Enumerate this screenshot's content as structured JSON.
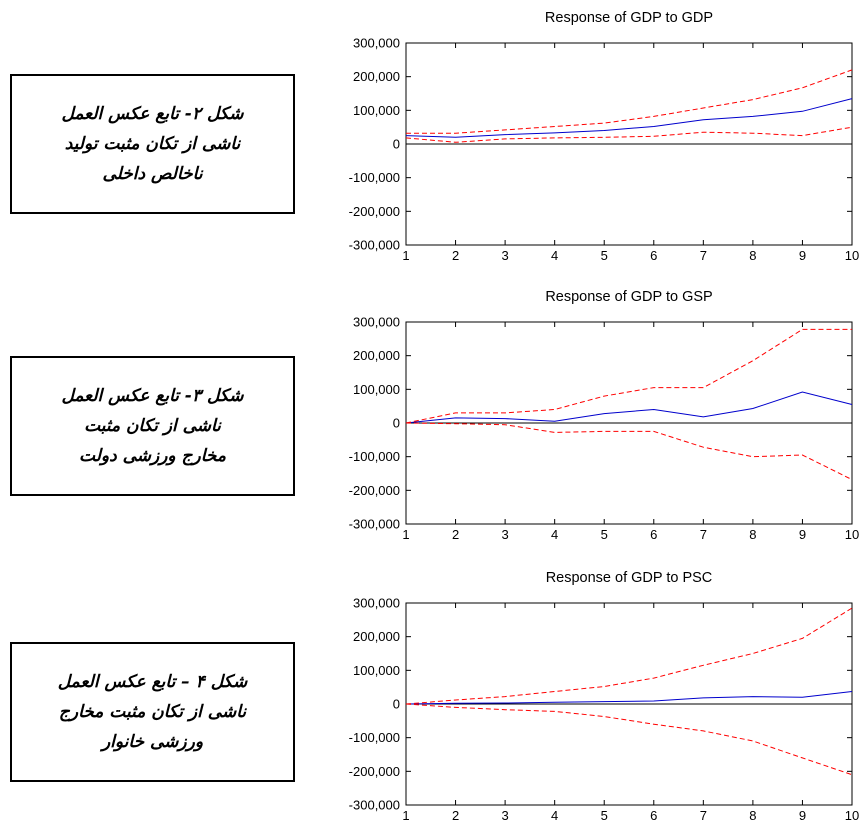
{
  "captions": [
    {
      "lines": [
        "شکل ۲- تابع عکس العمل",
        "ناشی از تکان مثبت تولید",
        "ناخالص داخلی"
      ]
    },
    {
      "lines": [
        "شکل ۳- تابع عکس العمل",
        "ناشی از تکان مثبت",
        "مخارج ورزشی دولت"
      ]
    },
    {
      "lines": [
        "شکل ۴ – تابع عکس العمل",
        "ناشی از تکان مثبت مخارج",
        "ورزشی خانوار"
      ]
    }
  ],
  "colors": {
    "response": "#0000cc",
    "bands": "#ff0000",
    "axis": "#000000",
    "zero_line": "#000000"
  },
  "chart_data": [
    {
      "type": "line",
      "title": "Response of GDP to GDP",
      "x": [
        1,
        2,
        3,
        4,
        5,
        6,
        7,
        8,
        9,
        10
      ],
      "ylim": [
        -300000,
        300000
      ],
      "yticks": [
        -300000,
        -200000,
        -100000,
        0,
        100000,
        200000,
        300000
      ],
      "ytick_labels": [
        "-300,000",
        "-200,000",
        "-100,000",
        "0",
        "100,000",
        "200,000",
        "300,000"
      ],
      "xtick_labels": [
        "1",
        "2",
        "3",
        "4",
        "5",
        "6",
        "7",
        "8",
        "9",
        "10"
      ],
      "grid": false,
      "series": [
        {
          "role": "response",
          "values": [
            25000,
            20000,
            28000,
            33000,
            40000,
            52000,
            72000,
            82000,
            97000,
            135000
          ]
        },
        {
          "role": "upper",
          "values": [
            32000,
            32000,
            42000,
            52000,
            62000,
            82000,
            107000,
            132000,
            167000,
            220000
          ]
        },
        {
          "role": "lower",
          "values": [
            18000,
            5000,
            15000,
            18000,
            20000,
            23000,
            35000,
            32000,
            25000,
            50000
          ]
        }
      ]
    },
    {
      "type": "line",
      "title": "Response of GDP to GSP",
      "x": [
        1,
        2,
        3,
        4,
        5,
        6,
        7,
        8,
        9,
        10
      ],
      "ylim": [
        -300000,
        300000
      ],
      "yticks": [
        -300000,
        -200000,
        -100000,
        0,
        100000,
        200000,
        300000
      ],
      "ytick_labels": [
        "-300,000",
        "-200,000",
        "-100,000",
        "0",
        "100,000",
        "200,000",
        "300,000"
      ],
      "xtick_labels": [
        "1",
        "2",
        "3",
        "4",
        "5",
        "6",
        "7",
        "8",
        "9",
        "10"
      ],
      "grid": false,
      "series": [
        {
          "role": "response",
          "values": [
            0,
            15000,
            13000,
            5000,
            28000,
            40000,
            18000,
            43000,
            92000,
            55000
          ]
        },
        {
          "role": "upper",
          "values": [
            0,
            30000,
            30000,
            40000,
            80000,
            105000,
            105000,
            185000,
            278000,
            278000
          ]
        },
        {
          "role": "lower",
          "values": [
            0,
            -2000,
            -5000,
            -28000,
            -25000,
            -25000,
            -72000,
            -100000,
            -95000,
            -168000
          ]
        }
      ]
    },
    {
      "type": "line",
      "title": "Response of GDP to PSC",
      "x": [
        1,
        2,
        3,
        4,
        5,
        6,
        7,
        8,
        9,
        10
      ],
      "ylim": [
        -300000,
        300000
      ],
      "yticks": [
        -300000,
        -200000,
        -100000,
        0,
        100000,
        200000,
        300000
      ],
      "ytick_labels": [
        "-300,000",
        "-200,000",
        "-100,000",
        "0",
        "100,000",
        "200,000",
        "300,000"
      ],
      "xtick_labels": [
        "1",
        "2",
        "3",
        "4",
        "5",
        "6",
        "7",
        "8",
        "9",
        "10"
      ],
      "grid": false,
      "series": [
        {
          "role": "response",
          "values": [
            0,
            2000,
            3000,
            5000,
            7000,
            9000,
            18000,
            22000,
            20000,
            37000
          ]
        },
        {
          "role": "upper",
          "values": [
            0,
            12000,
            22000,
            37000,
            52000,
            77000,
            115000,
            150000,
            195000,
            285000
          ]
        },
        {
          "role": "lower",
          "values": [
            0,
            -10000,
            -17000,
            -22000,
            -37000,
            -60000,
            -80000,
            -110000,
            -160000,
            -210000
          ]
        }
      ]
    }
  ]
}
